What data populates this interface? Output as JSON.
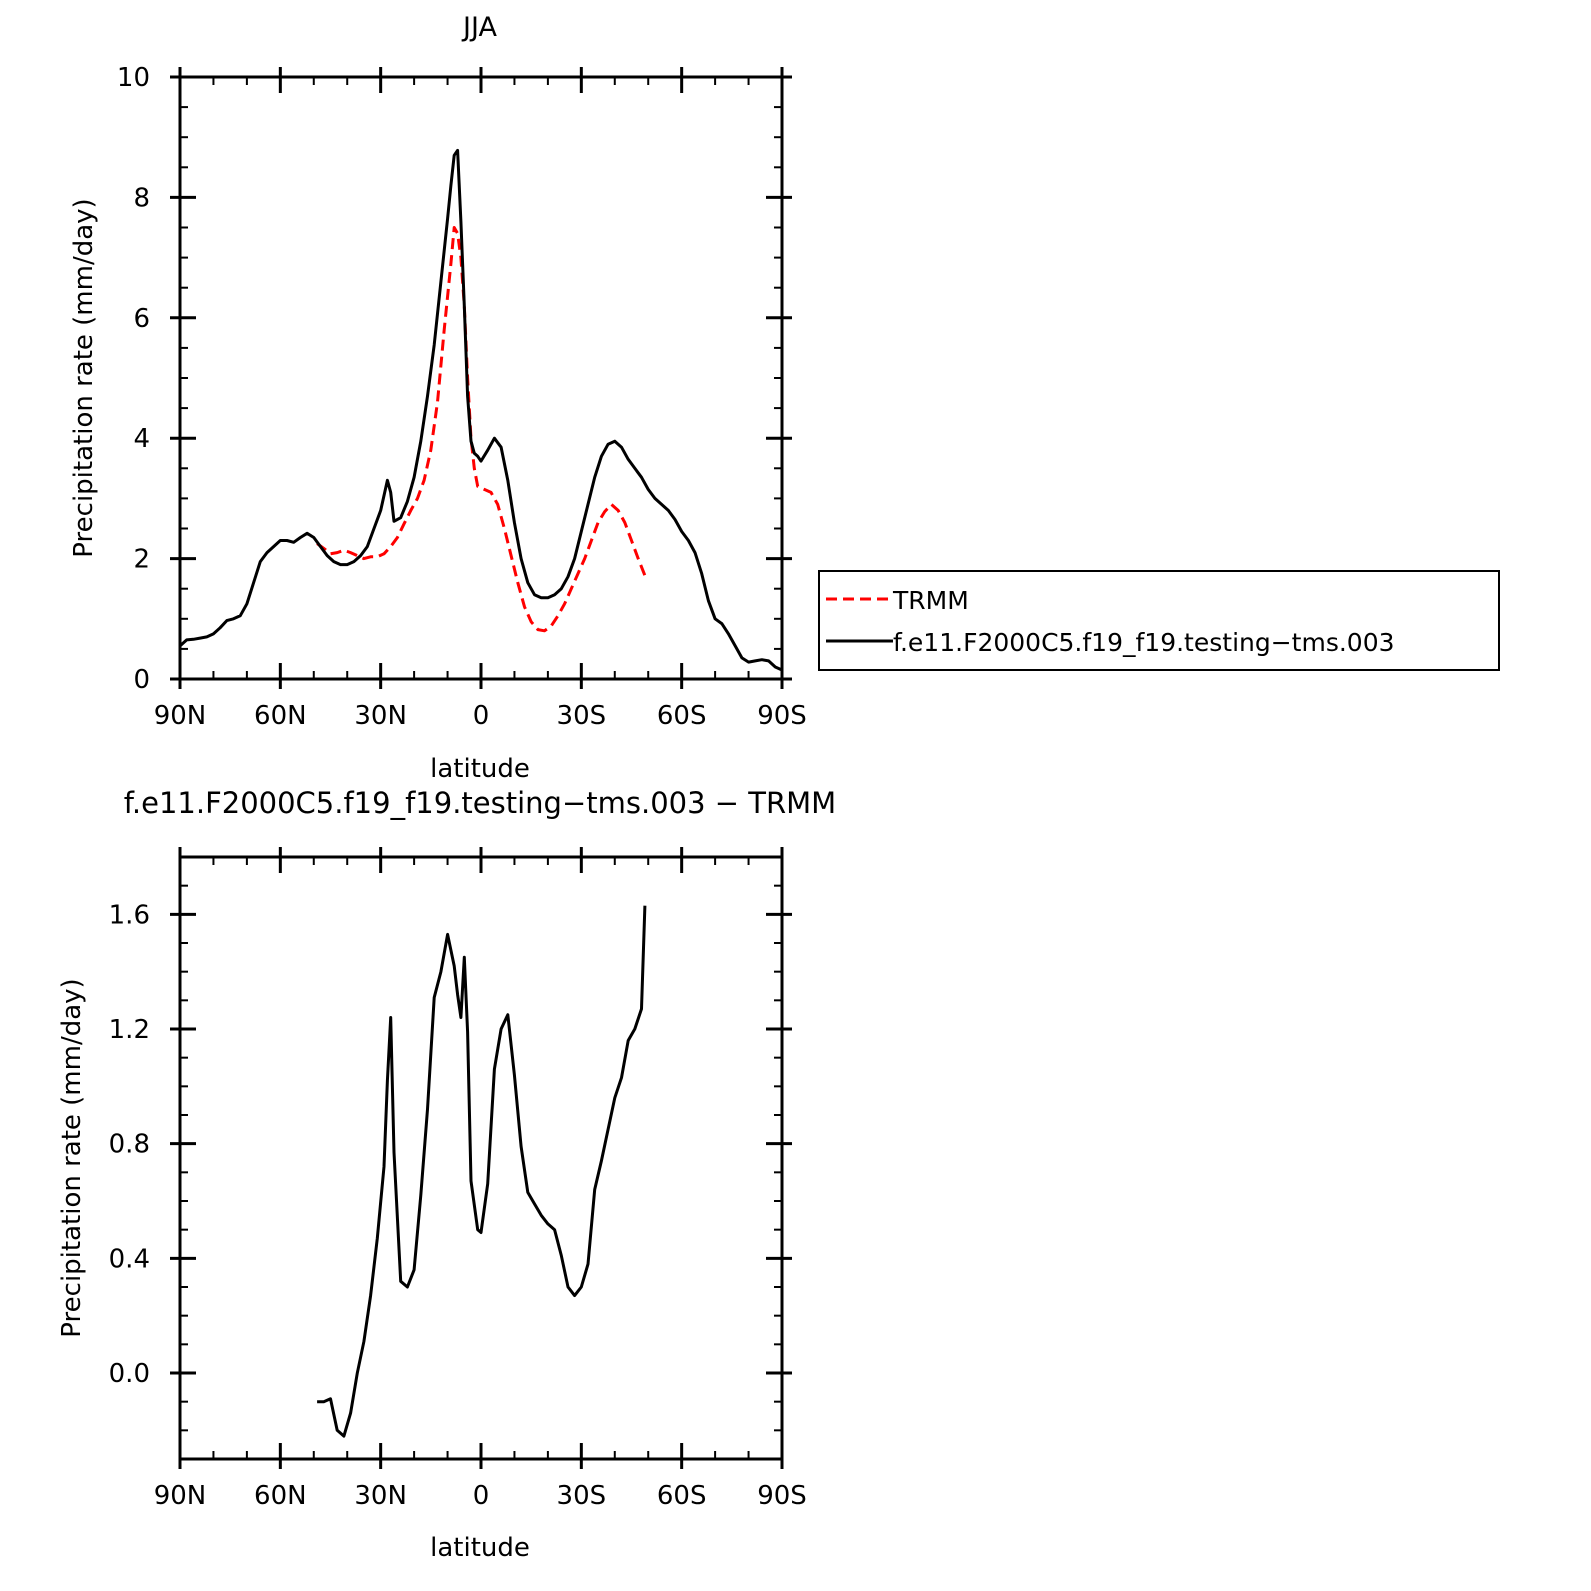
{
  "chart_data": [
    {
      "type": "line",
      "title": "JJA",
      "xlabel": "latitude",
      "ylabel": "Precipitation rate (mm/day)",
      "xlim": [
        90,
        -90
      ],
      "ylim": [
        0,
        10
      ],
      "x_ticks": [
        {
          "value": 90,
          "label": "90N"
        },
        {
          "value": 60,
          "label": "60N"
        },
        {
          "value": 30,
          "label": "30N"
        },
        {
          "value": 0,
          "label": "0"
        },
        {
          "value": -30,
          "label": "30S"
        },
        {
          "value": -60,
          "label": "60S"
        },
        {
          "value": -90,
          "label": "90S"
        }
      ],
      "y_ticks": [
        {
          "value": 0,
          "label": "0"
        },
        {
          "value": 2,
          "label": "2"
        },
        {
          "value": 4,
          "label": "4"
        },
        {
          "value": 6,
          "label": "6"
        },
        {
          "value": 8,
          "label": "8"
        },
        {
          "value": 10,
          "label": "10"
        }
      ],
      "legend_position": "right",
      "series": [
        {
          "name": "TRMM",
          "color": "#ff0000",
          "dashed": true,
          "x": [
            49,
            47,
            45,
            43,
            41,
            39,
            37,
            35,
            33,
            31,
            29,
            27,
            25,
            23,
            21,
            19,
            17,
            15,
            13,
            11,
            9,
            8,
            7,
            6,
            5,
            4,
            3,
            2,
            1,
            -1,
            -3,
            -5,
            -7,
            -9,
            -11,
            -13,
            -15,
            -17,
            -19,
            -21,
            -23,
            -25,
            -27,
            -29,
            -31,
            -33,
            -35,
            -37,
            -39,
            -41,
            -43,
            -45,
            -47,
            -49
          ],
          "y": [
            2.25,
            2.17,
            2.08,
            2.1,
            2.14,
            2.1,
            2.05,
            2.0,
            2.03,
            2.03,
            2.08,
            2.2,
            2.35,
            2.58,
            2.8,
            3.0,
            3.3,
            3.8,
            4.6,
            5.8,
            6.9,
            7.5,
            7.4,
            7.0,
            6.2,
            5.0,
            4.0,
            3.5,
            3.2,
            3.15,
            3.1,
            2.9,
            2.5,
            2.05,
            1.6,
            1.2,
            0.95,
            0.82,
            0.8,
            0.88,
            1.05,
            1.25,
            1.5,
            1.75,
            2.0,
            2.3,
            2.6,
            2.78,
            2.9,
            2.8,
            2.6,
            2.3,
            2.0,
            1.72
          ]
        },
        {
          "name": "f.e11.F2000C5.f19_f19.testing−tms.003",
          "color": "#000000",
          "dashed": false,
          "x": [
            90,
            88,
            86,
            84,
            82,
            80,
            78,
            76,
            74,
            72,
            70,
            68,
            66,
            64,
            62,
            60,
            58,
            56,
            54,
            52,
            50,
            48,
            46,
            44,
            42,
            40,
            38,
            36,
            34,
            32,
            30,
            28,
            27,
            26,
            24,
            22,
            20,
            18,
            16,
            14,
            12,
            10,
            9,
            8,
            7,
            6,
            5,
            4,
            3,
            2,
            1,
            0,
            -2,
            -4,
            -6,
            -8,
            -10,
            -12,
            -14,
            -16,
            -18,
            -20,
            -22,
            -24,
            -26,
            -28,
            -30,
            -32,
            -34,
            -36,
            -38,
            -40,
            -42,
            -44,
            -46,
            -48,
            -50,
            -52,
            -54,
            -56,
            -58,
            -60,
            -62,
            -64,
            -66,
            -68,
            -70,
            -72,
            -74,
            -76,
            -78,
            -80,
            -82,
            -84,
            -86,
            -88,
            -90
          ],
          "y": [
            0.55,
            0.65,
            0.66,
            0.68,
            0.7,
            0.75,
            0.85,
            0.97,
            1.0,
            1.05,
            1.25,
            1.6,
            1.95,
            2.1,
            2.2,
            2.3,
            2.3,
            2.27,
            2.35,
            2.42,
            2.35,
            2.2,
            2.05,
            1.95,
            1.9,
            1.9,
            1.95,
            2.05,
            2.2,
            2.5,
            2.8,
            3.3,
            3.1,
            2.62,
            2.68,
            2.95,
            3.35,
            3.95,
            4.7,
            5.55,
            6.6,
            7.65,
            8.2,
            8.7,
            8.78,
            7.6,
            6.2,
            4.7,
            3.95,
            3.75,
            3.7,
            3.62,
            3.8,
            4.0,
            3.85,
            3.3,
            2.6,
            2.0,
            1.6,
            1.4,
            1.35,
            1.35,
            1.4,
            1.5,
            1.7,
            2.0,
            2.45,
            2.9,
            3.35,
            3.7,
            3.9,
            3.95,
            3.85,
            3.65,
            3.5,
            3.35,
            3.15,
            3.0,
            2.9,
            2.8,
            2.65,
            2.45,
            2.3,
            2.1,
            1.75,
            1.3,
            1.0,
            0.92,
            0.75,
            0.55,
            0.35,
            0.28,
            0.3,
            0.32,
            0.3,
            0.2,
            0.15
          ]
        }
      ]
    },
    {
      "type": "line",
      "title": "f.e11.F2000C5.f19_f19.testing−tms.003 − TRMM",
      "xlabel": "latitude",
      "ylabel": "Precipitation rate (mm/day)",
      "xlim": [
        90,
        -90
      ],
      "ylim": [
        -0.3,
        1.8
      ],
      "x_ticks": [
        {
          "value": 90,
          "label": "90N"
        },
        {
          "value": 60,
          "label": "60N"
        },
        {
          "value": 30,
          "label": "30N"
        },
        {
          "value": 0,
          "label": "0"
        },
        {
          "value": -30,
          "label": "30S"
        },
        {
          "value": -60,
          "label": "60S"
        },
        {
          "value": -90,
          "label": "90S"
        }
      ],
      "y_ticks": [
        {
          "value": 0.0,
          "label": "0.0"
        },
        {
          "value": 0.4,
          "label": "0.4"
        },
        {
          "value": 0.8,
          "label": "0.8"
        },
        {
          "value": 1.2,
          "label": "1.2"
        },
        {
          "value": 1.6,
          "label": "1.6"
        }
      ],
      "series": [
        {
          "color": "#000000",
          "dashed": false,
          "x": [
            49,
            47,
            45,
            43,
            41,
            39,
            37,
            35,
            33,
            31,
            29,
            28,
            27,
            26,
            24,
            22,
            20,
            18,
            16,
            14,
            12,
            10,
            8,
            7,
            6,
            5,
            4,
            3,
            1,
            0,
            -2,
            -4,
            -6,
            -8,
            -10,
            -12,
            -14,
            -16,
            -18,
            -20,
            -22,
            -24,
            -26,
            -28,
            -30,
            -32,
            -34,
            -36,
            -38,
            -40,
            -42,
            -44,
            -46,
            -48,
            -49
          ],
          "y": [
            -0.1,
            -0.1,
            -0.09,
            -0.2,
            -0.22,
            -0.14,
            0.0,
            0.11,
            0.27,
            0.47,
            0.72,
            1.02,
            1.24,
            0.77,
            0.32,
            0.3,
            0.36,
            0.62,
            0.92,
            1.31,
            1.4,
            1.53,
            1.42,
            1.32,
            1.24,
            1.45,
            1.19,
            0.67,
            0.5,
            0.49,
            0.66,
            1.06,
            1.2,
            1.25,
            1.04,
            0.79,
            0.63,
            0.59,
            0.55,
            0.52,
            0.5,
            0.41,
            0.3,
            0.27,
            0.3,
            0.38,
            0.64,
            0.74,
            0.85,
            0.96,
            1.03,
            1.16,
            1.2,
            1.27,
            1.63
          ]
        }
      ]
    }
  ],
  "legend": {
    "items": [
      {
        "label": "TRMM",
        "color": "#ff0000",
        "dashed": true
      },
      {
        "label": "f.e11.F2000C5.f19_f19.testing−tms.003",
        "color": "#000000",
        "dashed": false
      }
    ]
  }
}
